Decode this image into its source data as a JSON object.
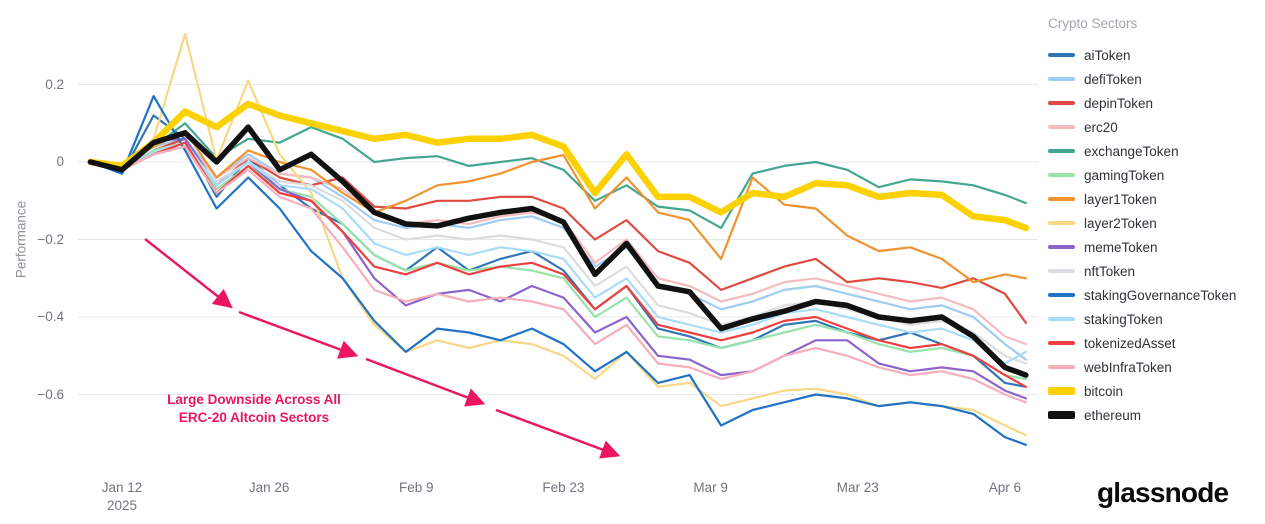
{
  "legend": {
    "title": "Crypto Sectors"
  },
  "branding": {
    "logo_text": "glassnode",
    "logo_color": "#0b0b0b"
  },
  "annotation": {
    "line1": "Large Downside Across All",
    "line2": "ERC-20 Altcoin Sectors",
    "color": "#ec1561"
  },
  "axes": {
    "y_label": "Performance",
    "y_ticks": [
      {
        "value": 0.2,
        "label": "0.2"
      },
      {
        "value": 0,
        "label": "0"
      },
      {
        "value": -0.2,
        "label": "−0.2"
      },
      {
        "value": -0.4,
        "label": "−0.4"
      },
      {
        "value": -0.6,
        "label": "−0.6"
      }
    ],
    "x_ticks": [
      {
        "day": 3,
        "label": "Jan 12",
        "sublabel": "2025"
      },
      {
        "day": 17,
        "label": "Jan 26",
        "sublabel": ""
      },
      {
        "day": 31,
        "label": "Feb 9",
        "sublabel": ""
      },
      {
        "day": 45,
        "label": "Feb 23",
        "sublabel": ""
      },
      {
        "day": 59,
        "label": "Mar 9",
        "sublabel": ""
      },
      {
        "day": 73,
        "label": "Mar 23",
        "sublabel": ""
      },
      {
        "day": 87,
        "label": "Apr 6",
        "sublabel": ""
      }
    ]
  },
  "chart_data": {
    "type": "line",
    "title": "",
    "xlabel": "",
    "ylabel": "Performance",
    "ylim": [
      -0.78,
      0.36
    ],
    "grid": "horizontal",
    "legend_position": "right",
    "grid_color": "#e8e8ea",
    "x_days": [
      0,
      3,
      6,
      9,
      12,
      15,
      18,
      21,
      24,
      27,
      30,
      33,
      36,
      39,
      42,
      45,
      48,
      51,
      54,
      57,
      60,
      63,
      66,
      69,
      72,
      75,
      78,
      81,
      84,
      87,
      89
    ],
    "x_dates": [
      "Jan 9",
      "Jan 12",
      "Jan 15",
      "Jan 18",
      "Jan 21",
      "Jan 24",
      "Jan 27",
      "Jan 30",
      "Feb 2",
      "Feb 5",
      "Feb 8",
      "Feb 11",
      "Feb 14",
      "Feb 17",
      "Feb 20",
      "Feb 23",
      "Feb 26",
      "Mar 1",
      "Mar 4",
      "Mar 7",
      "Mar 10",
      "Mar 13",
      "Mar 16",
      "Mar 19",
      "Mar 22",
      "Mar 25",
      "Mar 28",
      "Mar 31",
      "Apr 3",
      "Apr 6",
      "Apr 8"
    ],
    "series": [
      {
        "name": "aiToken",
        "color": "#3375b4",
        "line_width": 2.2,
        "values": [
          0,
          -0.03,
          0.12,
          0.06,
          -0.09,
          0.01,
          -0.06,
          -0.12,
          -0.16,
          -0.24,
          -0.28,
          -0.22,
          -0.28,
          -0.25,
          -0.23,
          -0.28,
          -0.38,
          -0.32,
          -0.43,
          -0.45,
          -0.48,
          -0.46,
          -0.42,
          -0.41,
          -0.44,
          -0.46,
          -0.44,
          -0.47,
          -0.5,
          -0.57,
          -0.58
        ]
      },
      {
        "name": "defiToken",
        "color": "#9fcdf2",
        "line_width": 2.2,
        "values": [
          0,
          -0.015,
          0.04,
          0.06,
          -0.04,
          0.02,
          -0.03,
          -0.04,
          -0.09,
          -0.15,
          -0.17,
          -0.16,
          -0.17,
          -0.15,
          -0.14,
          -0.17,
          -0.27,
          -0.22,
          -0.32,
          -0.34,
          -0.38,
          -0.36,
          -0.33,
          -0.32,
          -0.34,
          -0.36,
          -0.38,
          -0.37,
          -0.4,
          -0.47,
          -0.51
        ]
      },
      {
        "name": "depinToken",
        "color": "#df4b43",
        "line_width": 2.2,
        "values": [
          0,
          -0.02,
          0.03,
          0.06,
          -0.06,
          0.01,
          -0.04,
          -0.06,
          -0.04,
          -0.115,
          -0.12,
          -0.1,
          -0.1,
          -0.09,
          -0.09,
          -0.12,
          -0.2,
          -0.15,
          -0.23,
          -0.26,
          -0.33,
          -0.3,
          -0.27,
          -0.25,
          -0.31,
          -0.3,
          -0.31,
          -0.325,
          -0.3,
          -0.34,
          -0.415
        ]
      },
      {
        "name": "erc20",
        "color": "#f4bcc0",
        "line_width": 2.2,
        "values": [
          0,
          -0.02,
          0.03,
          0.05,
          -0.04,
          0.01,
          -0.03,
          -0.04,
          -0.07,
          -0.13,
          -0.16,
          -0.15,
          -0.16,
          -0.14,
          -0.13,
          -0.15,
          -0.26,
          -0.2,
          -0.3,
          -0.32,
          -0.36,
          -0.34,
          -0.31,
          -0.3,
          -0.32,
          -0.34,
          -0.36,
          -0.35,
          -0.38,
          -0.45,
          -0.47
        ]
      },
      {
        "name": "exchangeToken",
        "color": "#43a691",
        "line_width": 2.2,
        "values": [
          0,
          -0.01,
          0.04,
          0.1,
          0.01,
          0.06,
          0.05,
          0.09,
          0.06,
          0.0,
          0.01,
          0.015,
          -0.01,
          0.0,
          0.01,
          -0.02,
          -0.1,
          -0.06,
          -0.115,
          -0.125,
          -0.17,
          -0.03,
          -0.01,
          0.0,
          -0.02,
          -0.065,
          -0.045,
          -0.05,
          -0.06,
          -0.085,
          -0.106
        ]
      },
      {
        "name": "gamingToken",
        "color": "#97e3ab",
        "line_width": 2.2,
        "values": [
          0,
          -0.02,
          0.03,
          0.05,
          -0.07,
          -0.01,
          -0.07,
          -0.09,
          -0.16,
          -0.24,
          -0.28,
          -0.26,
          -0.28,
          -0.27,
          -0.28,
          -0.3,
          -0.4,
          -0.35,
          -0.45,
          -0.46,
          -0.48,
          -0.46,
          -0.44,
          -0.42,
          -0.44,
          -0.47,
          -0.49,
          -0.48,
          -0.5,
          -0.55,
          -0.56
        ]
      },
      {
        "name": "layer1Token",
        "color": "#f0932f",
        "line_width": 2.2,
        "values": [
          0,
          -0.01,
          0.04,
          0.08,
          -0.04,
          0.03,
          0.0,
          -0.02,
          -0.08,
          -0.13,
          -0.1,
          -0.06,
          -0.05,
          -0.03,
          0.0,
          0.018,
          -0.12,
          -0.04,
          -0.13,
          -0.15,
          -0.25,
          -0.04,
          -0.11,
          -0.12,
          -0.19,
          -0.23,
          -0.22,
          -0.25,
          -0.31,
          -0.29,
          -0.3
        ]
      },
      {
        "name": "layer2Token",
        "color": "#f8d886",
        "line_width": 2.2,
        "values": [
          0,
          -0.02,
          0.06,
          0.33,
          0.005,
          0.21,
          0.02,
          -0.08,
          -0.3,
          -0.42,
          -0.49,
          -0.46,
          -0.48,
          -0.46,
          -0.47,
          -0.5,
          -0.56,
          -0.49,
          -0.58,
          -0.57,
          -0.63,
          -0.61,
          -0.59,
          -0.585,
          -0.6,
          -0.63,
          -0.62,
          -0.63,
          -0.64,
          -0.68,
          -0.705
        ]
      },
      {
        "name": "memeToken",
        "color": "#8c64cb",
        "line_width": 2.2,
        "values": [
          0,
          -0.01,
          0.055,
          0.06,
          -0.06,
          0.0,
          -0.07,
          -0.1,
          -0.18,
          -0.3,
          -0.37,
          -0.34,
          -0.33,
          -0.36,
          -0.32,
          -0.35,
          -0.44,
          -0.4,
          -0.5,
          -0.51,
          -0.55,
          -0.54,
          -0.5,
          -0.46,
          -0.46,
          -0.52,
          -0.54,
          -0.53,
          -0.54,
          -0.59,
          -0.61
        ]
      },
      {
        "name": "nftToken",
        "color": "#dcdce0",
        "line_width": 2.2,
        "values": [
          0,
          -0.02,
          0.02,
          0.04,
          -0.05,
          0.0,
          -0.05,
          -0.06,
          -0.1,
          -0.17,
          -0.2,
          -0.19,
          -0.2,
          -0.19,
          -0.2,
          -0.22,
          -0.32,
          -0.27,
          -0.37,
          -0.39,
          -0.42,
          -0.4,
          -0.37,
          -0.36,
          -0.38,
          -0.4,
          -0.42,
          -0.41,
          -0.44,
          -0.5,
          -0.52
        ]
      },
      {
        "name": "stakingGovernanceToken",
        "color": "#1f72c6",
        "line_width": 2.2,
        "values": [
          0,
          -0.03,
          0.17,
          0.03,
          -0.12,
          -0.04,
          -0.12,
          -0.23,
          -0.3,
          -0.41,
          -0.49,
          -0.43,
          -0.44,
          -0.46,
          -0.43,
          -0.47,
          -0.54,
          -0.49,
          -0.57,
          -0.55,
          -0.68,
          -0.64,
          -0.62,
          -0.6,
          -0.61,
          -0.63,
          -0.62,
          -0.63,
          -0.65,
          -0.71,
          -0.73
        ]
      },
      {
        "name": "stakingToken",
        "color": "#a8dcf8",
        "line_width": 2.2,
        "values": [
          0,
          -0.02,
          0.025,
          0.05,
          -0.06,
          0.0,
          -0.06,
          -0.07,
          -0.12,
          -0.21,
          -0.24,
          -0.22,
          -0.24,
          -0.22,
          -0.23,
          -0.25,
          -0.35,
          -0.3,
          -0.4,
          -0.42,
          -0.44,
          -0.42,
          -0.39,
          -0.38,
          -0.4,
          -0.42,
          -0.44,
          -0.43,
          -0.46,
          -0.52,
          -0.49
        ]
      },
      {
        "name": "tokenizedAsset",
        "color": "#ee4040",
        "line_width": 2.2,
        "values": [
          0,
          -0.02,
          0.02,
          0.05,
          -0.08,
          -0.01,
          -0.08,
          -0.1,
          -0.18,
          -0.27,
          -0.29,
          -0.26,
          -0.29,
          -0.27,
          -0.26,
          -0.29,
          -0.38,
          -0.32,
          -0.42,
          -0.44,
          -0.46,
          -0.44,
          -0.41,
          -0.4,
          -0.43,
          -0.46,
          -0.48,
          -0.47,
          -0.5,
          -0.55,
          -0.58
        ]
      },
      {
        "name": "webInfraToken",
        "color": "#f6afba",
        "line_width": 2.2,
        "values": [
          0,
          -0.02,
          0.02,
          0.04,
          -0.08,
          -0.02,
          -0.09,
          -0.12,
          -0.22,
          -0.33,
          -0.36,
          -0.34,
          -0.36,
          -0.35,
          -0.36,
          -0.38,
          -0.47,
          -0.42,
          -0.52,
          -0.53,
          -0.56,
          -0.54,
          -0.5,
          -0.48,
          -0.5,
          -0.53,
          -0.55,
          -0.54,
          -0.56,
          -0.6,
          -0.62
        ]
      },
      {
        "name": "bitcoin",
        "color": "#fbd101",
        "line_width": 6.5,
        "values": [
          0,
          -0.01,
          0.05,
          0.13,
          0.09,
          0.15,
          0.12,
          0.1,
          0.08,
          0.06,
          0.07,
          0.05,
          0.06,
          0.06,
          0.07,
          0.04,
          -0.08,
          0.02,
          -0.09,
          -0.09,
          -0.13,
          -0.08,
          -0.09,
          -0.055,
          -0.06,
          -0.09,
          -0.08,
          -0.085,
          -0.14,
          -0.15,
          -0.17
        ]
      },
      {
        "name": "ethereum",
        "color": "#111111",
        "line_width": 5.5,
        "values": [
          0,
          -0.02,
          0.05,
          0.075,
          0.0,
          0.09,
          -0.02,
          0.02,
          -0.05,
          -0.13,
          -0.16,
          -0.165,
          -0.145,
          -0.13,
          -0.12,
          -0.155,
          -0.29,
          -0.21,
          -0.32,
          -0.335,
          -0.43,
          -0.405,
          -0.385,
          -0.36,
          -0.37,
          -0.4,
          -0.41,
          -0.4,
          -0.45,
          -0.53,
          -0.55
        ]
      }
    ]
  }
}
